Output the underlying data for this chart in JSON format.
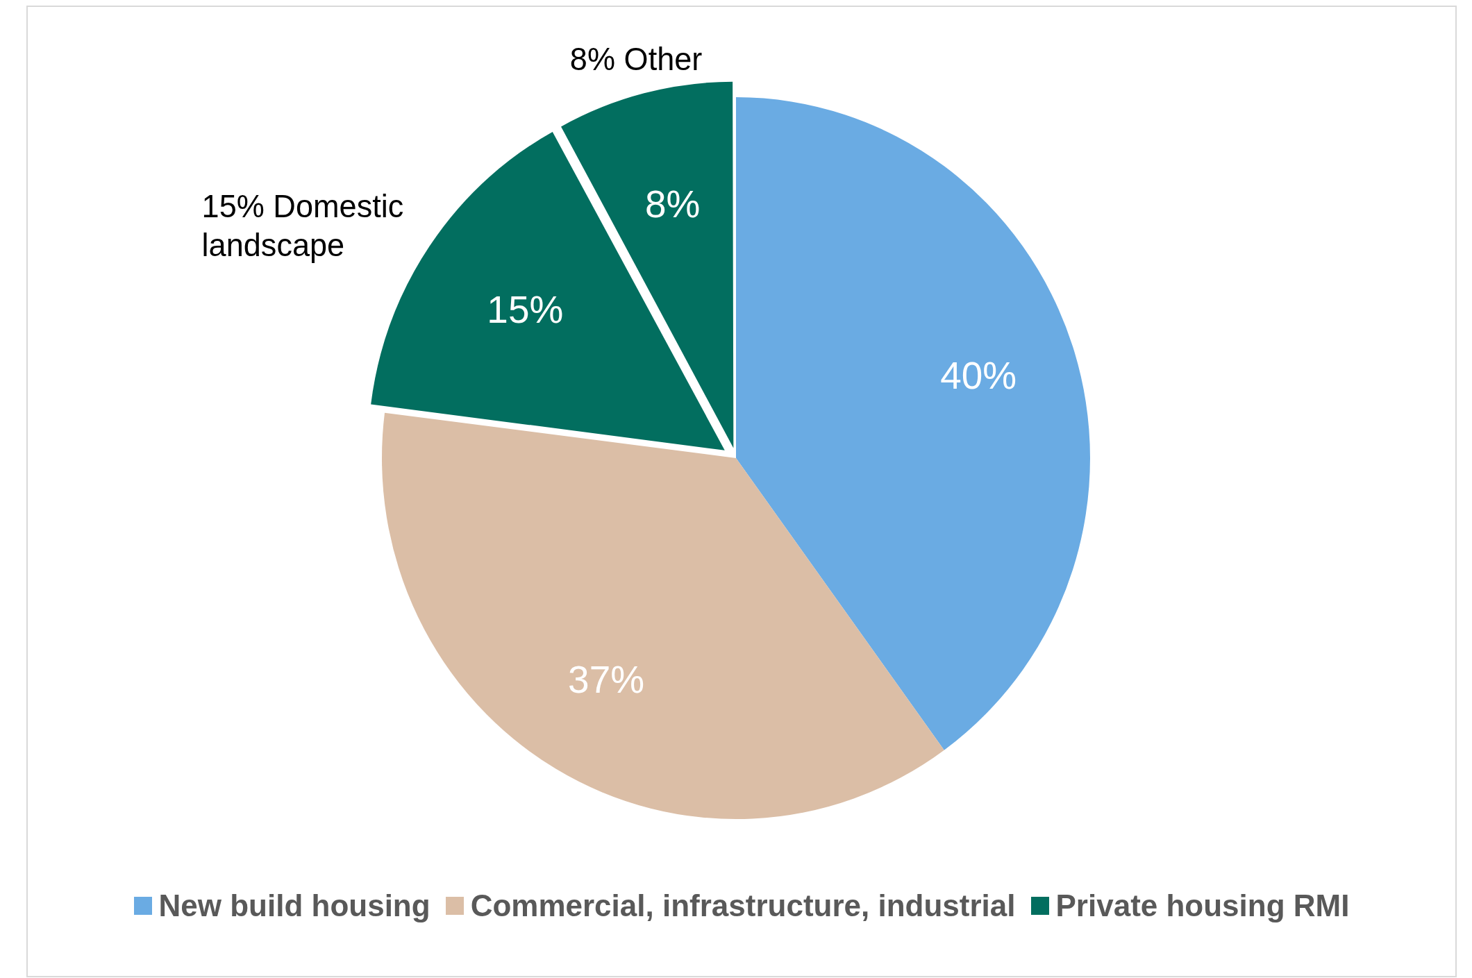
{
  "chart_data": {
    "type": "pie",
    "categories": [
      "New build housing",
      "Commercial, infrastructure, industrial",
      "Private housing RMI",
      null
    ],
    "values": [
      40,
      37,
      15,
      8
    ],
    "value_labels": [
      "40%",
      "37%",
      "15%",
      "8%"
    ],
    "colors": [
      "#6aabe3",
      "#dbbea6",
      "#026e5f",
      "#026e5f"
    ],
    "annotations": [
      "15% Domestic landscape",
      "8% Other"
    ],
    "legend": "bottom"
  }
}
